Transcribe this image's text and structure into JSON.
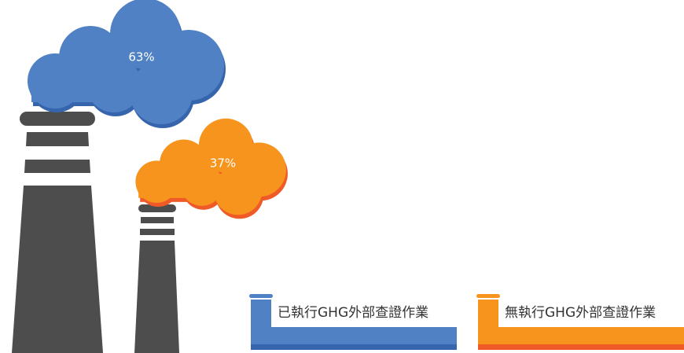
{
  "chart_data": {
    "type": "pictorial",
    "categories": [
      "已執行GHG外部查證作業",
      "無執行GHG外部查證作業"
    ],
    "values": [
      63,
      37
    ],
    "value_labels": [
      "63%",
      "37%"
    ],
    "colors": [
      "#4f81c4",
      "#f7941d"
    ],
    "shadow_colors": [
      "#3765ad",
      "#f05a28"
    ]
  }
}
